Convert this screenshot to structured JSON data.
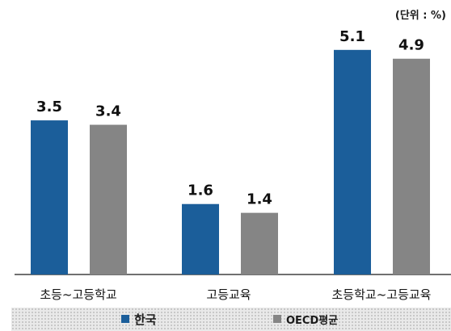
{
  "unit_label": "(단위 : %)",
  "legend": {
    "korea": "한국",
    "oecd": "OECD평균"
  },
  "colors": {
    "korea": "#1b5e9a",
    "oecd": "#858585",
    "axis": "#404040"
  },
  "chart_data": {
    "type": "bar",
    "categories": [
      "초등~고등학교",
      "고등교육",
      "초등학교~고등교육"
    ],
    "series": [
      {
        "name": "한국",
        "values": [
          3.5,
          1.6,
          5.1
        ]
      },
      {
        "name": "OECD평균",
        "values": [
          3.4,
          1.4,
          4.9
        ]
      }
    ],
    "value_labels": [
      [
        "3.5",
        "1.6",
        "5.1"
      ],
      [
        "3.4",
        "1.4",
        "4.9"
      ]
    ],
    "ylim": [
      0,
      5.5
    ],
    "grid": false,
    "legend_position": "bottom"
  }
}
